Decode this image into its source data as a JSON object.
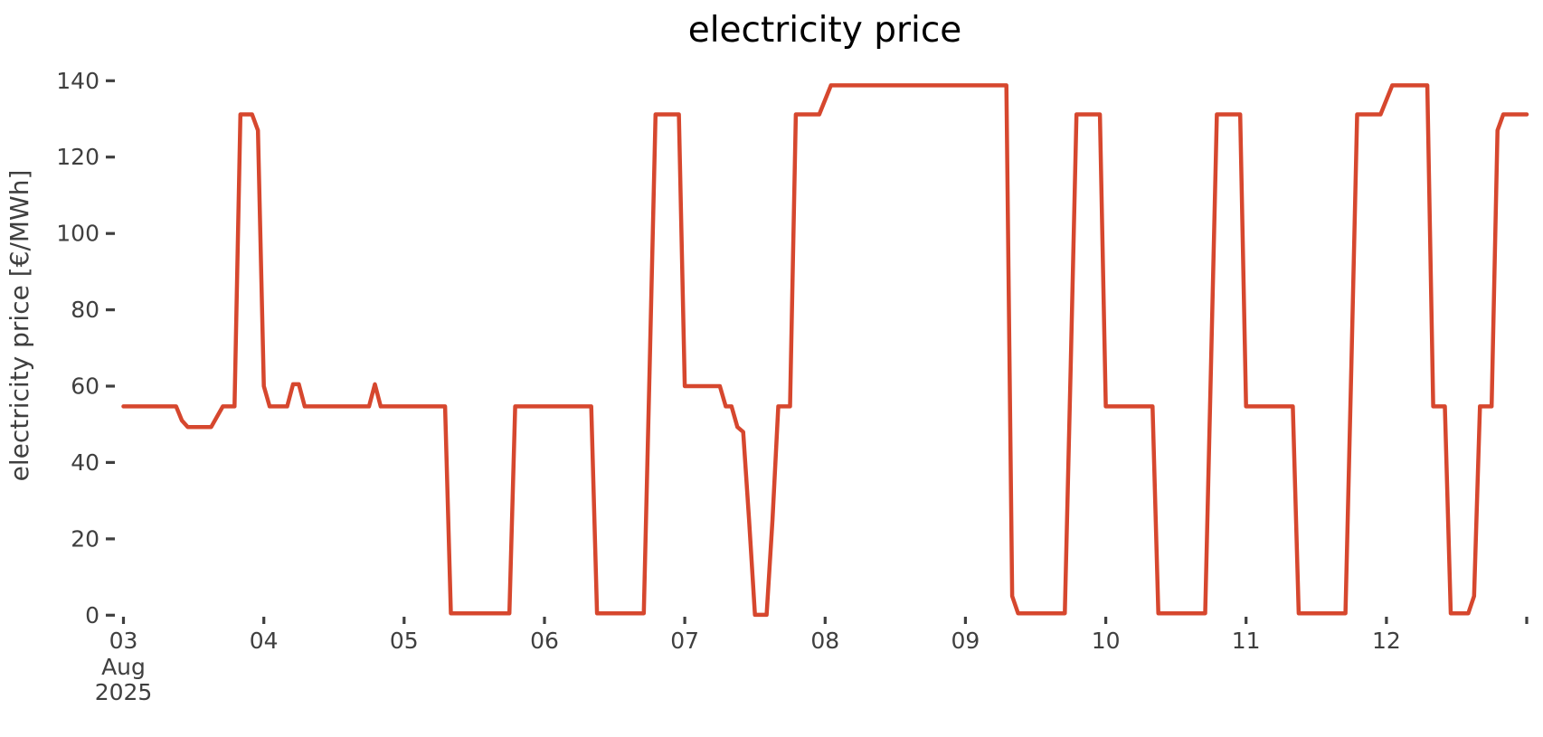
{
  "chart_data": {
    "type": "line",
    "title": "electricity price",
    "xlabel": "",
    "ylabel": "electricity price [€/MWh]",
    "unit": "€/MWh",
    "ylim": [
      0,
      140
    ],
    "y_ticks": [
      0,
      20,
      40,
      60,
      80,
      100,
      120,
      140
    ],
    "x_tick_labels": [
      "03",
      "04",
      "05",
      "06",
      "07",
      "08",
      "09",
      "10",
      "11",
      "12"
    ],
    "x_offset_label_line1": "Aug",
    "x_offset_label_line2": "2025",
    "x_range": [
      "2025-08-03 00:00",
      "2025-08-13 00:00"
    ],
    "resolution_hours": 1,
    "grid": false,
    "legend": null,
    "line_color": "#d6472e",
    "axis_text_color": "#3f3f3f",
    "days": [
      {
        "date": "2025-08-03",
        "values": [
          54.7,
          54.7,
          54.7,
          54.7,
          54.7,
          54.7,
          54.7,
          54.7,
          54.7,
          54.7,
          51,
          49.3,
          49.3,
          49.3,
          49.3,
          49.3,
          52,
          54.7,
          54.7,
          54.7,
          131.2,
          131.2,
          131.2,
          127
        ]
      },
      {
        "date": "2025-08-04",
        "values": [
          60,
          54.7,
          54.7,
          54.7,
          54.7,
          60.5,
          60.5,
          54.7,
          54.7,
          54.7,
          54.7,
          54.7,
          54.7,
          54.7,
          54.7,
          54.7,
          54.7,
          54.7,
          54.7,
          60.5,
          54.7,
          54.7,
          54.7,
          54.7
        ]
      },
      {
        "date": "2025-08-05",
        "values": [
          54.7,
          54.7,
          54.7,
          54.7,
          54.7,
          54.7,
          54.7,
          54.7,
          0.5,
          0.5,
          0.5,
          0.5,
          0.5,
          0.5,
          0.5,
          0.5,
          0.5,
          0.5,
          0.5,
          54.7,
          54.7,
          54.7,
          54.7,
          54.7
        ]
      },
      {
        "date": "2025-08-06",
        "values": [
          54.7,
          54.7,
          54.7,
          54.7,
          54.7,
          54.7,
          54.7,
          54.7,
          54.7,
          0.5,
          0.5,
          0.5,
          0.5,
          0.5,
          0.5,
          0.5,
          0.5,
          0.5,
          65,
          131.2,
          131.2,
          131.2,
          131.2,
          131.2
        ]
      },
      {
        "date": "2025-08-07",
        "values": [
          60,
          60,
          60,
          60,
          60,
          60,
          60,
          54.7,
          54.7,
          49.3,
          48,
          25,
          0.1,
          0.1,
          0.1,
          25,
          54.7,
          54.7,
          54.7,
          131.2,
          131.2,
          131.2,
          131.2,
          131.2
        ]
      },
      {
        "date": "2025-08-08",
        "values": [
          135,
          138.8,
          138.8,
          138.8,
          138.8,
          138.8,
          138.8,
          138.8,
          138.8,
          138.8,
          138.8,
          138.8,
          138.8,
          138.8,
          138.8,
          138.8,
          138.8,
          138.8,
          138.8,
          138.8,
          138.8,
          138.8,
          138.8,
          138.8
        ]
      },
      {
        "date": "2025-08-09",
        "values": [
          138.8,
          138.8,
          138.8,
          138.8,
          138.8,
          138.8,
          138.8,
          138.8,
          5,
          0.5,
          0.5,
          0.5,
          0.5,
          0.5,
          0.5,
          0.5,
          0.5,
          0.5,
          65,
          131.2,
          131.2,
          131.2,
          131.2,
          131.2
        ]
      },
      {
        "date": "2025-08-10",
        "values": [
          54.7,
          54.7,
          54.7,
          54.7,
          54.7,
          54.7,
          54.7,
          54.7,
          54.7,
          0.5,
          0.5,
          0.5,
          0.5,
          0.5,
          0.5,
          0.5,
          0.5,
          0.5,
          65,
          131.2,
          131.2,
          131.2,
          131.2,
          131.2
        ]
      },
      {
        "date": "2025-08-11",
        "values": [
          54.7,
          54.7,
          54.7,
          54.7,
          54.7,
          54.7,
          54.7,
          54.7,
          54.7,
          0.5,
          0.5,
          0.5,
          0.5,
          0.5,
          0.5,
          0.5,
          0.5,
          0.5,
          65,
          131.2,
          131.2,
          131.2,
          131.2,
          131.2
        ]
      },
      {
        "date": "2025-08-12",
        "values": [
          135,
          138.8,
          138.8,
          138.8,
          138.8,
          138.8,
          138.8,
          138.8,
          54.7,
          54.7,
          54.7,
          0.5,
          0.5,
          0.5,
          0.5,
          5,
          54.7,
          54.7,
          54.7,
          127,
          131.2,
          131.2,
          131.2,
          131.2
        ]
      }
    ],
    "final_point": {
      "date": "2025-08-13",
      "hour": 0,
      "value": 131.2
    }
  }
}
